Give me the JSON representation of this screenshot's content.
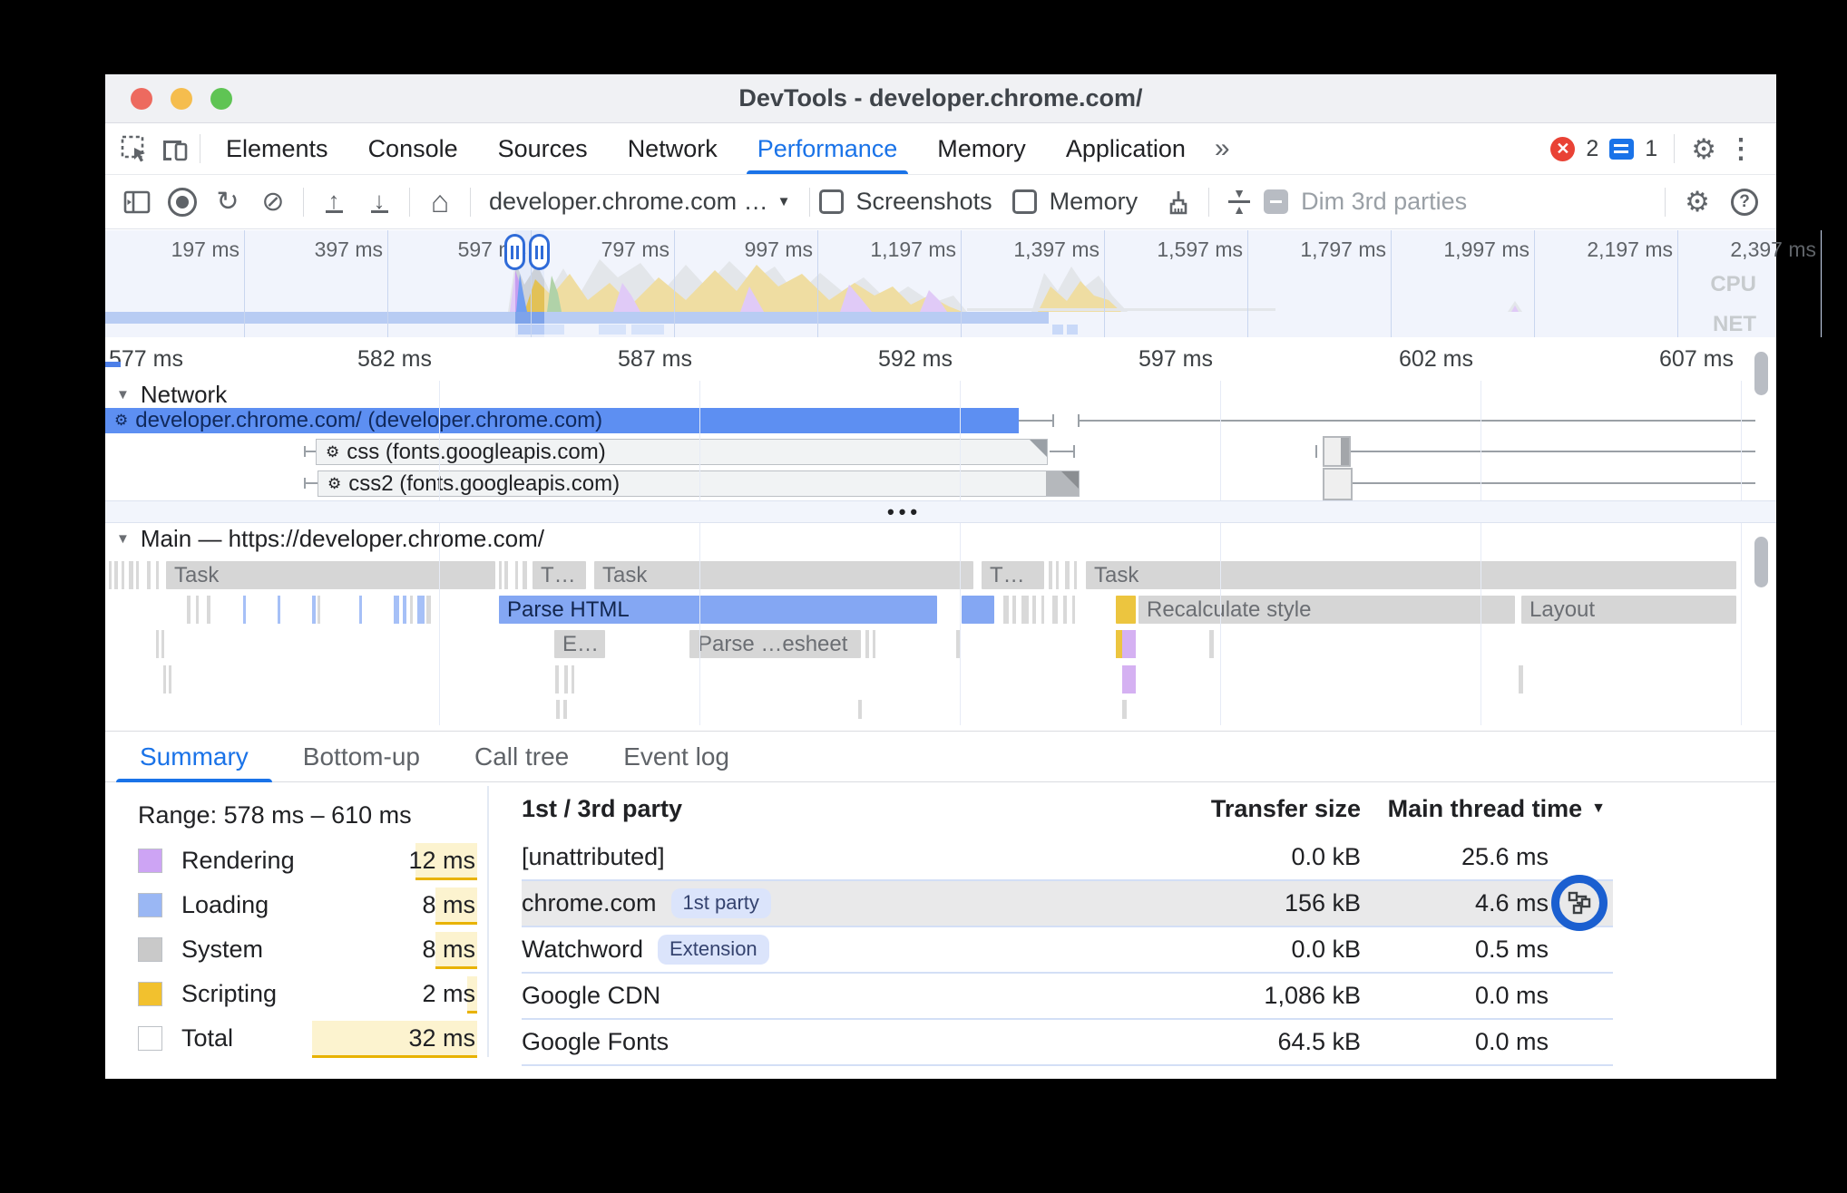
{
  "window": {
    "title": "DevTools - developer.chrome.com/"
  },
  "tabbar": {
    "tabs": [
      "Elements",
      "Console",
      "Sources",
      "Network",
      "Performance",
      "Memory",
      "Application"
    ],
    "active_tab": "Performance",
    "error_count": "2",
    "issue_count": "1"
  },
  "toolbar": {
    "page_select": "developer.chrome.com …",
    "screenshots": "Screenshots",
    "memory": "Memory",
    "dim_3rd_parties": "Dim 3rd parties"
  },
  "overview": {
    "ticks": [
      "197 ms",
      "397 ms",
      "597 ms",
      "797 ms",
      "997 ms",
      "1,197 ms",
      "1,397 ms",
      "1,597 ms",
      "1,797 ms",
      "1,997 ms",
      "2,197 ms",
      "2,397 ms"
    ],
    "cpu": "CPU",
    "net": "NET"
  },
  "ruler": {
    "ticks": [
      "577 ms",
      "582 ms",
      "587 ms",
      "592 ms",
      "597 ms",
      "602 ms",
      "607 ms"
    ]
  },
  "network": {
    "title": "Network",
    "rows": [
      "developer.chrome.com/ (developer.chrome.com)",
      "css (fonts.googleapis.com)",
      "css2 (fonts.googleapis.com)"
    ],
    "more": "•••"
  },
  "main": {
    "title": "Main — https://developer.chrome.com/",
    "labels": {
      "task": "Task",
      "task_short": "T…",
      "parse_html": "Parse HTML",
      "eval_short": "E…",
      "parse_sheet": "Parse …esheet",
      "recalc": "Recalculate style",
      "layout": "Layout"
    }
  },
  "bottom_tabs": {
    "tabs": [
      "Summary",
      "Bottom-up",
      "Call tree",
      "Event log"
    ],
    "active": "Summary"
  },
  "summary": {
    "range": "Range: 578 ms – 610 ms",
    "total_ms": 32,
    "rows": [
      {
        "label": "Rendering",
        "value": "12 ms",
        "ms": 12,
        "color": "#cda4f4"
      },
      {
        "label": "Loading",
        "value": "8 ms",
        "ms": 8,
        "color": "#9ab7f4"
      },
      {
        "label": "System",
        "value": "8 ms",
        "ms": 8,
        "color": "#c9c9c9"
      },
      {
        "label": "Scripting",
        "value": "2 ms",
        "ms": 2,
        "color": "#f2c12e"
      },
      {
        "label": "Total",
        "value": "32 ms",
        "ms": 32,
        "color": "#ffffff"
      }
    ]
  },
  "party_table": {
    "headers": {
      "party": "1st / 3rd party",
      "transfer": "Transfer size",
      "time": "Main thread time"
    },
    "rows": [
      {
        "name": "[unattributed]",
        "badge": "",
        "transfer": "0.0 kB",
        "time": "25.6 ms"
      },
      {
        "name": "chrome.com",
        "badge": "1st party",
        "transfer": "156 kB",
        "time": "4.6 ms"
      },
      {
        "name": "Watchword",
        "badge": "Extension",
        "transfer": "0.0 kB",
        "time": "0.5 ms"
      },
      {
        "name": "Google CDN",
        "badge": "",
        "transfer": "1,086 kB",
        "time": "0.0 ms"
      },
      {
        "name": "Google Fonts",
        "badge": "",
        "transfer": "64.5 kB",
        "time": "0.0 ms"
      }
    ]
  },
  "icons": {
    "gear": "⚙",
    "kebab": "⋮",
    "help": "?",
    "reload": "↻",
    "block": "⊘",
    "home": "⌂",
    "caret_down": "▼",
    "tri_down": "▼",
    "chevrons": "»",
    "up": "↑",
    "down": "↓",
    "error_x": "✕",
    "sort_down": "▼",
    "arrow_up_small": "▲"
  },
  "colors": {
    "accent_blue": "#1a73e8",
    "selection_blue": "#2f6bd8",
    "error_red": "#e94235",
    "net_request_blue": "#5d8ff2",
    "highlight_yellow": "#fcf3cf"
  }
}
